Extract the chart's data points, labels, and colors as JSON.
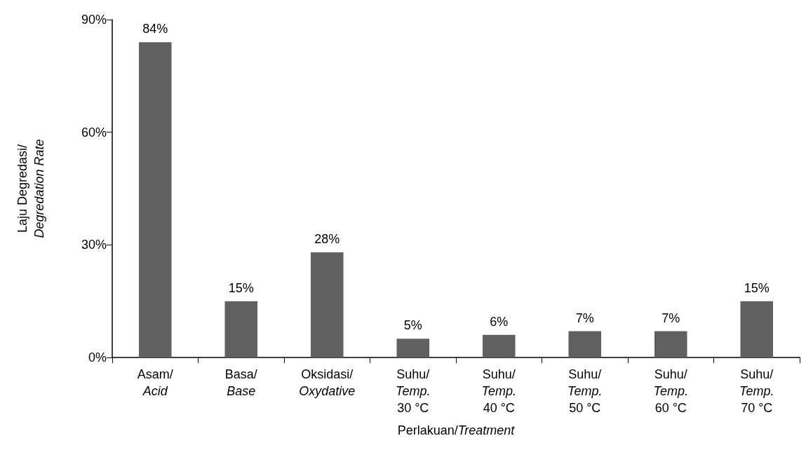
{
  "chart_data": {
    "type": "bar",
    "xlabel": "Perlakuan/Treatment",
    "ylabel": "Laju Degredasi/\nDegredation Rate",
    "categories": [
      "Asam/\nAcid",
      "Basa/\nBase",
      "Oksidasi/\nOxydative",
      "Suhu/\nTemp.\n30 °C",
      "Suhu/\nTemp.\n40 °C",
      "Suhu/\nTemp.\n50 °C",
      "Suhu/\nTemp.\n60 °C",
      "Suhu/\nTemp.\n70 °C"
    ],
    "values": [
      84,
      15,
      28,
      5,
      6,
      7,
      7,
      15
    ],
    "value_labels": [
      "84%",
      "15%",
      "28%",
      "5%",
      "6%",
      "7%",
      "7%",
      "15%"
    ],
    "color": "#606060",
    "ylim": [
      0,
      90
    ],
    "yticks": [
      {
        "value": 0,
        "label": "0%"
      },
      {
        "value": 30,
        "label": "30%"
      },
      {
        "value": 60,
        "label": "60%"
      },
      {
        "value": 90,
        "label": "90%"
      }
    ],
    "grid": false
  }
}
